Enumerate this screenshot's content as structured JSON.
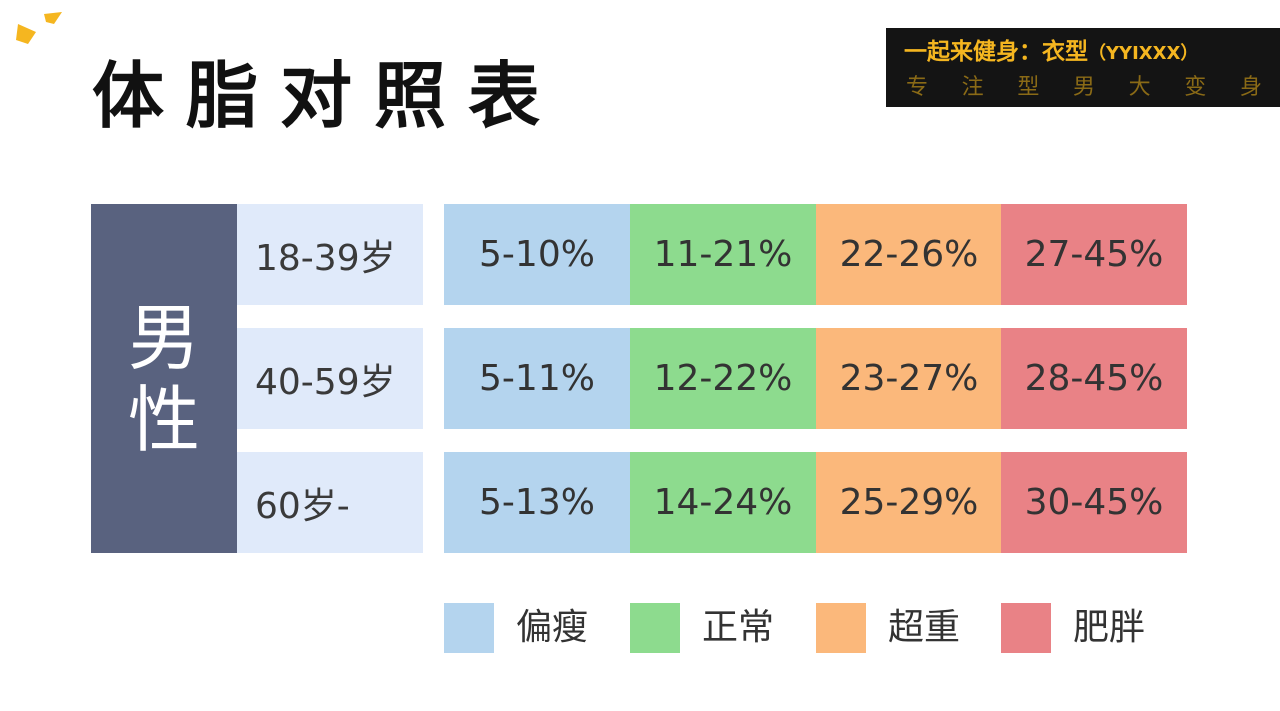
{
  "title": "体脂对照表",
  "brand": {
    "line1_main": "一起来健身：衣型",
    "line1_paren": "（YYIXXX）",
    "slogan_chars": [
      "专",
      "注",
      "型",
      "男",
      "大",
      "变",
      "身"
    ]
  },
  "gender": "男性",
  "categories": [
    {
      "name": "偏瘦",
      "color": "#b4d4ee"
    },
    {
      "name": "正常",
      "color": "#8ddb8e"
    },
    {
      "name": "超重",
      "color": "#fbb87b"
    },
    {
      "name": "肥胖",
      "color": "#e98286"
    }
  ],
  "rows": [
    {
      "age": "18-39岁",
      "ranges": [
        "5-10%",
        "11-21%",
        "22-26%",
        "27-45%"
      ]
    },
    {
      "age": "40-59岁",
      "ranges": [
        "5-11%",
        "12-22%",
        "23-27%",
        "28-45%"
      ]
    },
    {
      "age": "60岁-",
      "ranges": [
        "5-13%",
        "14-24%",
        "25-29%",
        "30-45%"
      ]
    }
  ],
  "colors": {
    "gender_block": "#59627f",
    "age_cell": "#e0eafa",
    "brand_gold": "#f5b620",
    "brand_bg": "#141414"
  }
}
